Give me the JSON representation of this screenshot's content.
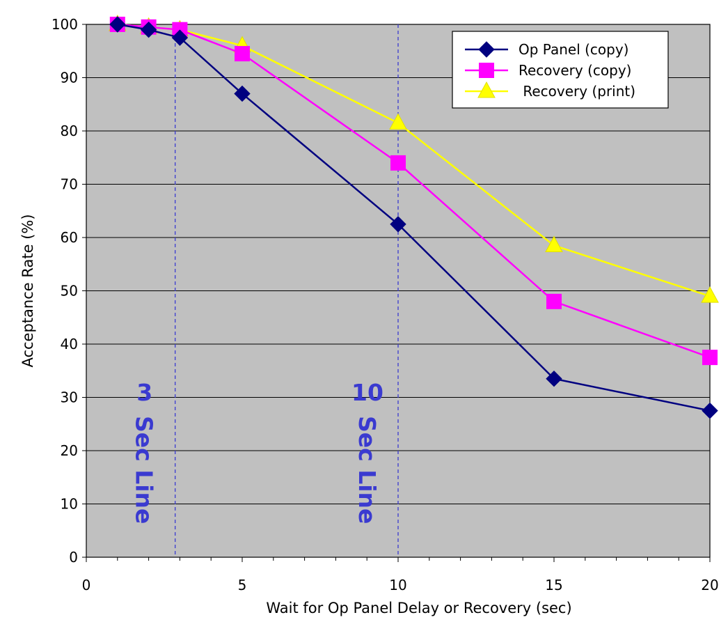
{
  "chart_data": {
    "type": "line",
    "xlabel": "Wait for Op Panel Delay or Recovery (sec)",
    "ylabel": "Acceptance Rate (%)",
    "xlim": [
      0,
      20
    ],
    "ylim": [
      0,
      100
    ],
    "x_ticks": [
      "0",
      "5",
      "10",
      "15",
      "20"
    ],
    "y_ticks": [
      "0",
      "10",
      "20",
      "30",
      "40",
      "50",
      "60",
      "70",
      "80",
      "90",
      "100"
    ],
    "grid": "horizontal",
    "legend_position": "top-right",
    "plot_background": "#c0c0c0",
    "series": [
      {
        "name": "Op Panel (copy)",
        "marker": "diamond",
        "color": "#000080",
        "x": [
          1,
          2,
          3,
          5,
          10,
          15,
          20
        ],
        "y": [
          100,
          99,
          97.5,
          87,
          62.5,
          33.5,
          27.5
        ]
      },
      {
        "name": "Recovery (copy)",
        "marker": "square",
        "color": "#ff00ff",
        "x": [
          1,
          2,
          3,
          5,
          10,
          15,
          20
        ],
        "y": [
          100,
          99.5,
          99,
          94.5,
          74,
          48,
          37.5
        ]
      },
      {
        "name": " Recovery (print)",
        "marker": "triangle",
        "color": "#ffff00",
        "x": [
          1,
          2,
          3,
          5,
          10,
          15,
          20
        ],
        "y": [
          100,
          99.5,
          99,
          96,
          81.5,
          58.5,
          49
        ]
      }
    ],
    "reference_lines": [
      {
        "x": 2.85,
        "number": "3",
        "text": "Sec Line",
        "color": "#3a3ad0"
      },
      {
        "x": 10,
        "number": "10",
        "text": "Sec Line",
        "color": "#3a3ad0"
      }
    ]
  }
}
